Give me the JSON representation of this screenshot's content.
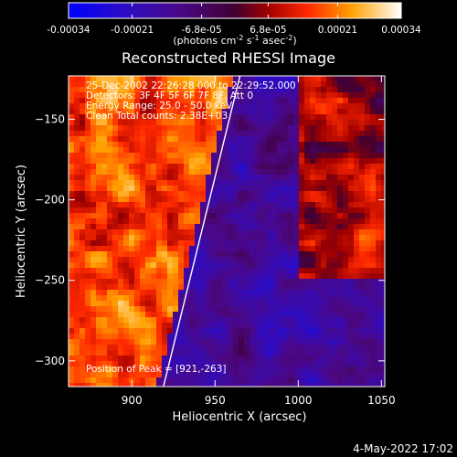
{
  "chart_data": {
    "type": "heatmap",
    "title": "Reconstructed RHESSI Image",
    "xlabel": "Heliocentric X (arcsec)",
    "ylabel": "Heliocentric Y (arcsec)",
    "xlim": [
      862,
      1052
    ],
    "ylim": [
      -316,
      -123
    ],
    "x_ticks": [
      900,
      950,
      1000,
      1050
    ],
    "y_ticks": [
      -150,
      -200,
      -250,
      -300
    ],
    "colorbar": {
      "min": -0.00034,
      "max": 0.00034,
      "tick_values": [
        -0.00034,
        -0.00021,
        -6.8e-05,
        6.8e-05,
        0.00021,
        0.00034
      ],
      "tick_labels": [
        "-0.00034",
        "-0.00021",
        "-6.8e-05",
        "6.8e-05",
        "0.00021",
        "0.00034"
      ],
      "unit_label": "(photons cm",
      "unit_sup1": "-2",
      "unit_mid": " s",
      "unit_sup2": "-1",
      "unit_end": " asec",
      "unit_sup3": "-2",
      "unit_close": ")"
    },
    "info_lines": [
      "25-Dec-2002 22:26:28.000 to 22:29:52.000",
      "Detectors: 3F 4F 5F 6F 7F 8F, Att 0",
      "Energy Range: 25.0 - 50.0 keV",
      "Clean    Total counts: 2.38E+03"
    ],
    "peak_label": "Position of Peak = [921,-263]",
    "peak_position": [
      921,
      -263
    ],
    "limb_line": {
      "x_start": 919,
      "y_start": -316,
      "x_end": 965,
      "y_end": -123
    },
    "footer": "4-May-2022 17:02"
  }
}
